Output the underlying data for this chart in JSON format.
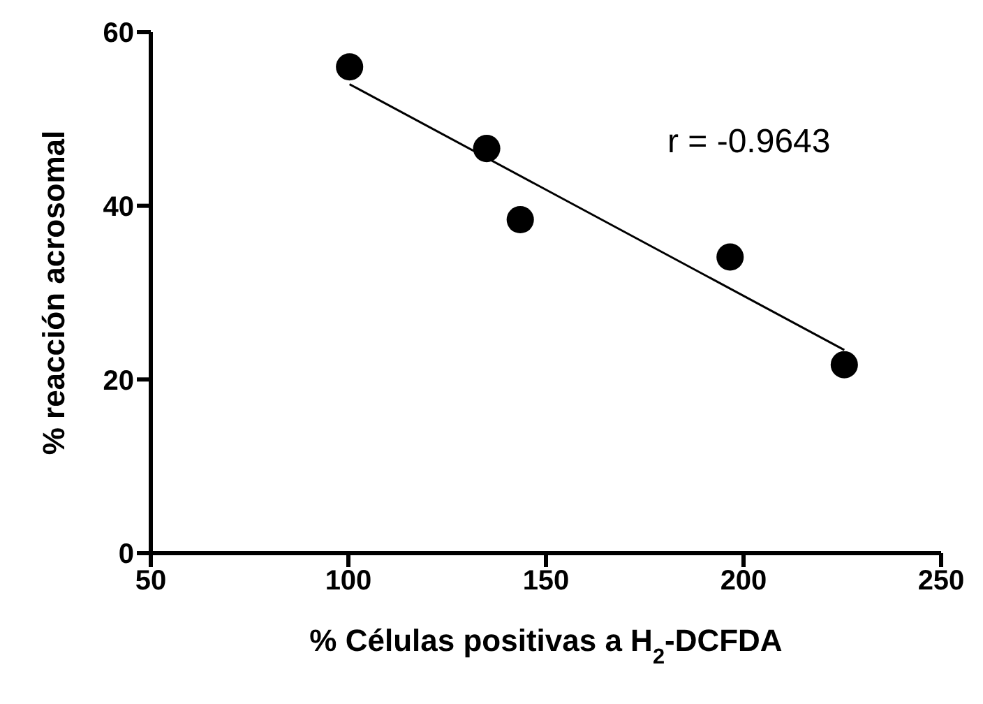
{
  "chart_data": {
    "type": "scatter",
    "xlabel": "% Células positivas a H$_{2}$-DCFDA",
    "ylabel": "%  reacción acrosomal",
    "annotations": [
      "r = -0.9643"
    ],
    "xlim": [
      50,
      250
    ],
    "xticks": [
      50,
      100,
      150,
      200,
      250
    ],
    "ylim": [
      0,
      60
    ],
    "yticks": [
      0,
      20,
      40,
      60
    ],
    "grid": false,
    "marker": "circle",
    "series": [
      {
        "color": "#000000",
        "x": [
          100.3,
          135,
          143.5,
          196.6,
          225.5
        ],
        "values": [
          56.0,
          46.6,
          38.4,
          34.1,
          21.7
        ]
      },
      {
        "type": "line",
        "color": "#000000",
        "marker": "none",
        "line_style": "solid",
        "x": [
          100.3,
          225.5
        ],
        "values": [
          54.0,
          23.4
        ]
      }
    ]
  }
}
